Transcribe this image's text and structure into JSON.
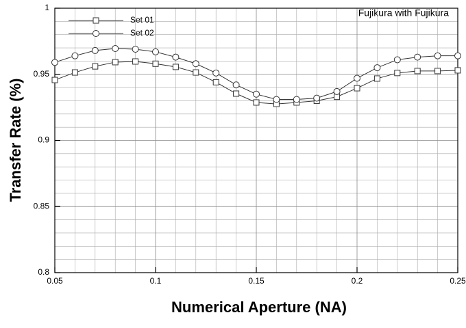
{
  "chart_data": {
    "type": "line",
    "annotation": "Fujikura with Fujikura",
    "x_label": "Numerical Aperture (NA)",
    "y_label": "Transfer Rate (%)",
    "x": [
      0.05,
      0.06,
      0.07,
      0.08,
      0.09,
      0.1,
      0.11,
      0.12,
      0.13,
      0.14,
      0.15,
      0.16,
      0.17,
      0.18,
      0.19,
      0.2,
      0.21,
      0.22,
      0.23,
      0.24,
      0.25
    ],
    "series": [
      {
        "name": "Set 01",
        "color": "#333333",
        "marker": "square",
        "values": [
          0.9457,
          0.9514,
          0.956,
          0.9592,
          0.9597,
          0.958,
          0.9556,
          0.9514,
          0.944,
          0.9354,
          0.9287,
          0.9276,
          0.9287,
          0.93,
          0.933,
          0.9395,
          0.9468,
          0.951,
          0.9525,
          0.9525,
          0.953
        ]
      },
      {
        "name": "Set 02",
        "color": "#333333",
        "marker": "circle",
        "values": [
          0.959,
          0.964,
          0.968,
          0.9695,
          0.969,
          0.967,
          0.963,
          0.958,
          0.951,
          0.942,
          0.935,
          0.931,
          0.931,
          0.932,
          0.937,
          0.947,
          0.955,
          0.961,
          0.963,
          0.964,
          0.964
        ]
      }
    ],
    "xlim": [
      0.05,
      0.25
    ],
    "ylim": [
      0.8,
      1
    ],
    "xticks": [
      0.05,
      0.1,
      0.15,
      0.2,
      0.25
    ],
    "yticks": [
      0.8,
      0.85,
      0.9,
      0.95,
      1
    ],
    "grid": true,
    "legend": "top-left"
  }
}
